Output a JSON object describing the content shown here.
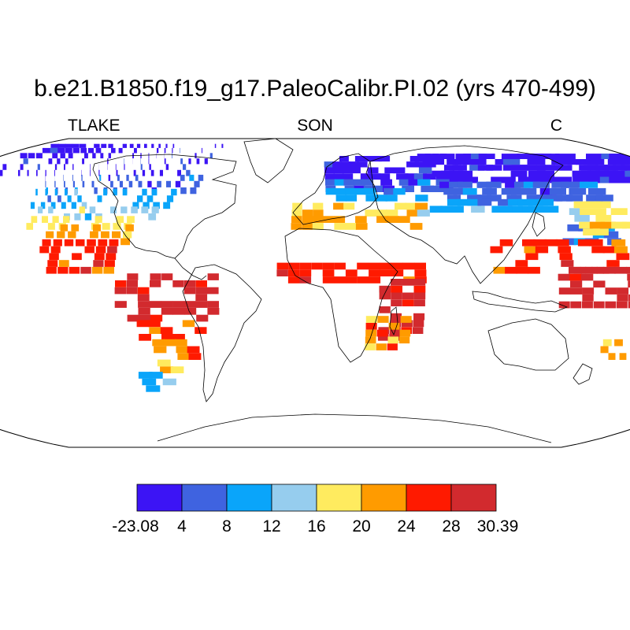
{
  "title": "b.e21.B1850.f19_g17.PaleoCalibr.PI.02 (yrs 470-499)",
  "left_label": "TLAKE",
  "center_label": "SON",
  "right_label": "C",
  "colorbar": {
    "colors": [
      "#3c14f5",
      "#3f63e0",
      "#0aa5fa",
      "#96cdee",
      "#ffeb5f",
      "#ff9b00",
      "#ff1a00",
      "#d22a2e"
    ],
    "tick_labels": [
      "-23.08",
      "4",
      "8",
      "12",
      "16",
      "20",
      "24",
      "28",
      "30.39"
    ]
  },
  "chart_data": {
    "type": "heatmap",
    "title": "b.e21.B1850.f19_g17.PaleoCalibr.PI.02 (yrs 470-499)",
    "variable": "TLAKE",
    "season": "SON",
    "units": "C",
    "projection": "Robinson",
    "levels": [
      -23.08,
      4,
      8,
      12,
      16,
      20,
      24,
      28,
      30.39
    ],
    "regions": [
      {
        "lon": [
          -170,
          -60
        ],
        "lat": [
          62,
          80
        ],
        "bin": 0
      },
      {
        "lon": [
          -135,
          -55
        ],
        "lat": [
          52,
          62
        ],
        "bin": 1
      },
      {
        "lon": [
          -130,
          -65
        ],
        "lat": [
          44,
          52
        ],
        "bin": 2
      },
      {
        "lon": [
          -125,
          -70
        ],
        "lat": [
          38,
          44
        ],
        "bin": 3
      },
      {
        "lon": [
          -120,
          -75
        ],
        "lat": [
          33,
          38
        ],
        "bin": 4
      },
      {
        "lon": [
          -110,
          -78
        ],
        "lat": [
          25,
          33
        ],
        "bin": 5
      },
      {
        "lon": [
          -110,
          -80
        ],
        "lat": [
          10,
          25
        ],
        "bin": 6
      },
      {
        "lon": [
          -78,
          -38
        ],
        "lat": [
          -15,
          8
        ],
        "bin": 7
      },
      {
        "lon": [
          -70,
          -45
        ],
        "lat": [
          -25,
          -15
        ],
        "bin": 6
      },
      {
        "lon": [
          -65,
          -50
        ],
        "lat": [
          -35,
          -25
        ],
        "bin": 5
      },
      {
        "lon": [
          -65,
          -58
        ],
        "lat": [
          -42,
          -35
        ],
        "bin": 4
      },
      {
        "lon": [
          -75,
          -65
        ],
        "lat": [
          -52,
          -42
        ],
        "bin": 2
      },
      {
        "lon": [
          5,
          60
        ],
        "lat": [
          60,
          71
        ],
        "bin": 0
      },
      {
        "lon": [
          60,
          180
        ],
        "lat": [
          58,
          73
        ],
        "bin": 0
      },
      {
        "lon": [
          5,
          60
        ],
        "lat": [
          53,
          60
        ],
        "bin": 1
      },
      {
        "lon": [
          60,
          130
        ],
        "lat": [
          48,
          58
        ],
        "bin": 1
      },
      {
        "lon": [
          5,
          50
        ],
        "lat": [
          48,
          53
        ],
        "bin": 2
      },
      {
        "lon": [
          50,
          100
        ],
        "lat": [
          42,
          48
        ],
        "bin": 2
      },
      {
        "lon": [
          -10,
          45
        ],
        "lat": [
          40,
          46
        ],
        "bin": 4
      },
      {
        "lon": [
          -10,
          40
        ],
        "lat": [
          33,
          40
        ],
        "bin": 5
      },
      {
        "lon": [
          100,
          120
        ],
        "lat": [
          25,
          35
        ],
        "bin": 1
      },
      {
        "lon": [
          110,
          140
        ],
        "lat": [
          30,
          45
        ],
        "bin": 4
      },
      {
        "lon": [
          70,
          120
        ],
        "lat": [
          10,
          28
        ],
        "bin": 6
      },
      {
        "lon": [
          95,
          125
        ],
        "lat": [
          -8,
          12
        ],
        "bin": 7
      },
      {
        "lon": [
          -15,
          40
        ],
        "lat": [
          5,
          15
        ],
        "bin": 6
      },
      {
        "lon": [
          25,
          40
        ],
        "lat": [
          -25,
          5
        ],
        "bin": 7
      },
      {
        "lon": [
          20,
          35
        ],
        "lat": [
          -30,
          -15
        ],
        "bin": 5
      },
      {
        "lon": [
          115,
          130
        ],
        "lat": [
          -35,
          -25
        ],
        "bin": 5
      },
      {
        "lon": [
          140,
          150
        ],
        "lat": [
          -30,
          -20
        ],
        "bin": 6
      },
      {
        "lon": [
          166,
          178
        ],
        "lat": [
          -46,
          -36
        ],
        "bin": 2
      }
    ]
  }
}
